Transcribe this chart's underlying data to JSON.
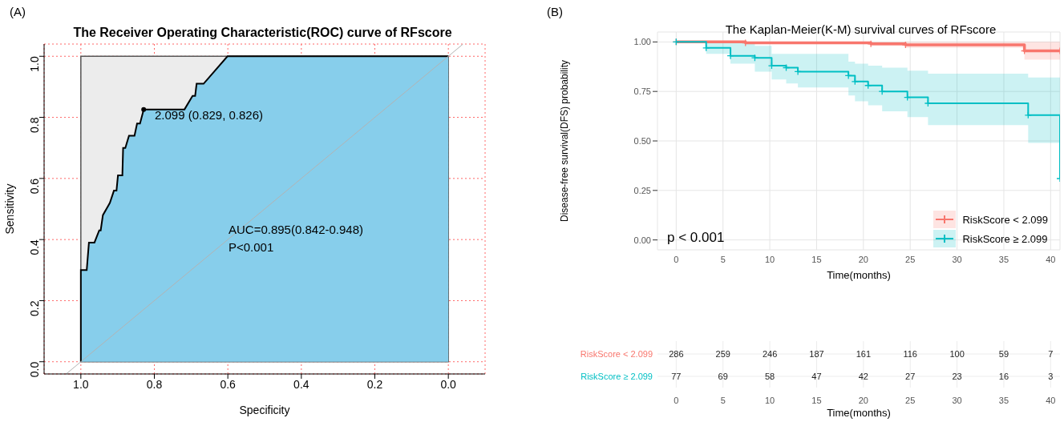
{
  "chart_data": [
    {
      "type": "line",
      "title": "The Receiver Operating Characteristic(ROC) curve of RFscore",
      "xlabel": "Specificity",
      "ylabel": "Sensitivity",
      "xlim": [
        1.1,
        -0.1
      ],
      "ylim": [
        -0.04,
        1.04
      ],
      "xticks": [
        {
          "value": 1,
          "label": "1.0"
        },
        0.8,
        0.6,
        0.4,
        0.2,
        {
          "value": 0,
          "label": "0.0"
        }
      ],
      "yticks": [
        {
          "value": 0,
          "label": "0.0"
        },
        0.2,
        0.4,
        0.6,
        0.8,
        {
          "value": 1,
          "label": "1.0"
        }
      ],
      "grid": true,
      "annotations": [
        "(A)",
        {
          "text": "2.099 (0.829, 0.826)",
          "x": 0.829,
          "y": 0.826
        },
        "AUC=0.895(0.842-0.948)",
        "P<0.001"
      ],
      "series": [
        {
          "type": "area",
          "color": "#87ceeb",
          "x": [
            1,
            1,
            0.984,
            0.978,
            0.963,
            0.95,
            0.946,
            0.94,
            0.921,
            0.91,
            0.903,
            0.899,
            0.887,
            0.885,
            0.879,
            0.869,
            0.854,
            0.847,
            0.839,
            0.829,
            0.718,
            0.696,
            0.689,
            0.685,
            0.666,
            0.601,
            0
          ],
          "values": [
            0,
            0.3,
            0.3,
            0.39,
            0.39,
            0.43,
            0.43,
            0.48,
            0.52,
            0.56,
            0.56,
            0.61,
            0.61,
            0.7,
            0.7,
            0.74,
            0.74,
            0.78,
            0.78,
            0.826,
            0.826,
            0.87,
            0.87,
            0.91,
            0.91,
            1,
            1
          ]
        },
        {
          "type": "line",
          "color": "#b3b3b3",
          "x": [
            1.04,
            -0.04
          ],
          "values": [
            -0.04,
            1.04
          ]
        },
        {
          "type": "scatter",
          "color": "#000000",
          "x": [
            0.829
          ],
          "values": [
            0.826
          ]
        }
      ]
    },
    {
      "type": "step",
      "title": "The Kaplan-Meier(K-M) survival curves of RFscore",
      "xlabel": "Time(months)",
      "ylabel": "Disease-free survival(DFS) probability",
      "xlim": [
        -2,
        41
      ],
      "ylim": [
        -0.05,
        1.05
      ],
      "xticks": [
        0,
        5,
        10,
        15,
        20,
        25,
        30,
        35,
        40
      ],
      "yticks": [
        {
          "value": 0,
          "label": "0.00"
        },
        0.25,
        {
          "value": 0.5,
          "label": "0.50"
        },
        0.75,
        {
          "value": 1,
          "label": "1.00"
        }
      ],
      "grid": true,
      "legend": "right",
      "marker": "cross",
      "annotations": [
        "(B)",
        "p < 0.001"
      ],
      "series": [
        {
          "name": "RiskScore < 2.099",
          "color": "#f8766d",
          "x": [
            0,
            7.4,
            20.8,
            24.5,
            37.2,
            41
          ],
          "values": [
            1,
            0.995,
            0.99,
            0.985,
            0.955,
            0.955
          ],
          "lower": [
            1,
            0.99,
            0.98,
            0.97,
            0.91,
            0.91
          ],
          "upper": [
            1,
            1,
            1,
            1,
            1,
            1
          ]
        },
        {
          "name": "RiskScore ≥ 2.099",
          "color": "#00bfc4",
          "x": [
            0,
            3.2,
            5.8,
            8.4,
            10.2,
            11.75,
            13,
            18.4,
            19.1,
            20.5,
            22,
            24.7,
            26.9,
            37.6,
            41
          ],
          "values": [
            1,
            0.97,
            0.93,
            0.92,
            0.88,
            0.87,
            0.85,
            0.83,
            0.8,
            0.78,
            0.75,
            0.72,
            0.69,
            0.63,
            0.31
          ],
          "lower": [
            1,
            0.94,
            0.89,
            0.85,
            0.81,
            0.79,
            0.77,
            0.73,
            0.7,
            0.68,
            0.65,
            0.62,
            0.58,
            0.49,
            0.31
          ],
          "upper": [
            1,
            1,
            1,
            0.98,
            0.94,
            0.94,
            0.94,
            0.9,
            0.89,
            0.88,
            0.87,
            0.855,
            0.84,
            0.82,
            0.82
          ]
        }
      ]
    },
    {
      "type": "heatmap",
      "xlabel": "Time(months)",
      "grid": true,
      "data_labels": true,
      "categories": [
        "0",
        "5",
        "10",
        "15",
        "20",
        "25",
        "30",
        "35",
        "40"
      ],
      "y_categories": [
        "RiskScore < 2.099",
        "RiskScore ≥ 2.099"
      ],
      "cells": [
        [
          286,
          259,
          246,
          187,
          161,
          116,
          100,
          59,
          7
        ],
        [
          77,
          69,
          58,
          47,
          42,
          27,
          23,
          16,
          3
        ]
      ]
    }
  ]
}
